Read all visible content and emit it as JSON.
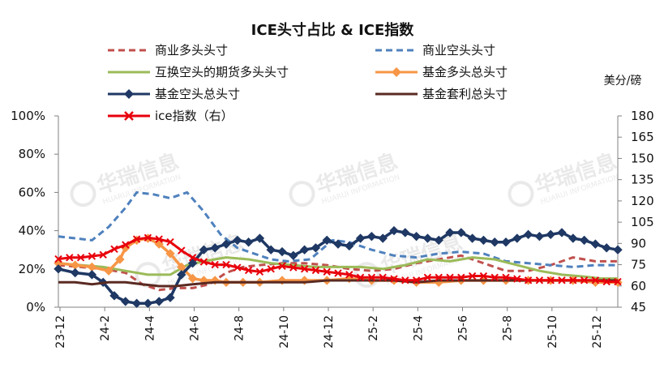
{
  "chart_data": {
    "type": "line",
    "title": "ICE头寸占比 & ICE指数",
    "right_axis_unit": "美分/磅",
    "x_tick_labels": [
      "23-12",
      "24-2",
      "24-4",
      "24-6",
      "24-8",
      "24-10",
      "24-12",
      "25-2",
      "25-4",
      "25-6",
      "25-8",
      "25-10",
      "25-12"
    ],
    "left_axis": {
      "ticks": [
        "0%",
        "20%",
        "40%",
        "60%",
        "80%",
        "100%"
      ],
      "range": [
        0,
        100
      ]
    },
    "right_axis": {
      "ticks": [
        "45",
        "60",
        "75",
        "90",
        "105",
        "120",
        "135",
        "150",
        "165",
        "180"
      ],
      "range": [
        45,
        180
      ]
    },
    "x_index_max": 100,
    "series": [
      {
        "name": "商业多头头寸",
        "axis": "left",
        "color": "#c0504d",
        "style": "dash",
        "marker": "none",
        "values": [
          [
            0,
            22
          ],
          [
            4,
            21
          ],
          [
            8,
            20
          ],
          [
            12,
            18
          ],
          [
            15,
            12
          ],
          [
            18,
            9
          ],
          [
            21,
            10
          ],
          [
            24,
            10
          ],
          [
            27,
            12
          ],
          [
            30,
            18
          ],
          [
            33,
            21
          ],
          [
            36,
            22
          ],
          [
            40,
            23
          ],
          [
            44,
            23
          ],
          [
            48,
            22
          ],
          [
            52,
            20
          ],
          [
            56,
            19
          ],
          [
            60,
            20
          ],
          [
            64,
            23
          ],
          [
            68,
            25
          ],
          [
            72,
            27
          ],
          [
            76,
            23
          ],
          [
            80,
            19
          ],
          [
            84,
            19
          ],
          [
            88,
            22
          ],
          [
            92,
            26
          ],
          [
            96,
            24
          ],
          [
            100,
            24
          ]
        ]
      },
      {
        "name": "商业空头头寸",
        "axis": "left",
        "color": "#4f81bd",
        "style": "dash",
        "marker": "none",
        "values": [
          [
            0,
            37
          ],
          [
            3,
            36
          ],
          [
            6,
            35
          ],
          [
            9,
            42
          ],
          [
            12,
            52
          ],
          [
            14,
            60
          ],
          [
            17,
            59
          ],
          [
            20,
            57
          ],
          [
            23,
            60
          ],
          [
            26,
            50
          ],
          [
            29,
            38
          ],
          [
            32,
            31
          ],
          [
            35,
            28
          ],
          [
            38,
            25
          ],
          [
            41,
            24
          ],
          [
            45,
            25
          ],
          [
            49,
            35
          ],
          [
            52,
            34
          ],
          [
            56,
            30
          ],
          [
            60,
            27
          ],
          [
            64,
            26
          ],
          [
            68,
            28
          ],
          [
            72,
            29
          ],
          [
            76,
            28
          ],
          [
            80,
            24
          ],
          [
            84,
            23
          ],
          [
            88,
            22
          ],
          [
            92,
            21
          ],
          [
            96,
            22
          ],
          [
            100,
            22
          ]
        ]
      },
      {
        "name": "互换空头的期货多头头寸",
        "axis": "left",
        "color": "#9bbb59",
        "style": "solid",
        "marker": "none",
        "values": [
          [
            0,
            23
          ],
          [
            4,
            22
          ],
          [
            8,
            21
          ],
          [
            12,
            19
          ],
          [
            16,
            17
          ],
          [
            20,
            17
          ],
          [
            23,
            22
          ],
          [
            26,
            24
          ],
          [
            30,
            26
          ],
          [
            34,
            25
          ],
          [
            38,
            23
          ],
          [
            42,
            22
          ],
          [
            46,
            21
          ],
          [
            50,
            21
          ],
          [
            54,
            21
          ],
          [
            58,
            20
          ],
          [
            62,
            22
          ],
          [
            66,
            25
          ],
          [
            70,
            24
          ],
          [
            74,
            26
          ],
          [
            78,
            25
          ],
          [
            82,
            22
          ],
          [
            86,
            19
          ],
          [
            90,
            17
          ],
          [
            94,
            16
          ],
          [
            97,
            15
          ],
          [
            100,
            15
          ]
        ]
      },
      {
        "name": "基金多头总头寸",
        "axis": "left",
        "color": "#f79646",
        "style": "solid",
        "marker": "diamond",
        "values": [
          [
            0,
            23
          ],
          [
            3,
            22
          ],
          [
            6,
            21
          ],
          [
            9,
            19
          ],
          [
            11,
            25
          ],
          [
            12,
            31
          ],
          [
            14,
            35
          ],
          [
            16,
            36
          ],
          [
            18,
            33
          ],
          [
            20,
            28
          ],
          [
            22,
            21
          ],
          [
            24,
            15
          ],
          [
            26,
            14
          ],
          [
            28,
            14
          ],
          [
            30,
            13
          ],
          [
            33,
            13
          ],
          [
            36,
            13
          ],
          [
            40,
            14
          ],
          [
            44,
            14
          ],
          [
            48,
            14
          ],
          [
            52,
            15
          ],
          [
            56,
            14
          ],
          [
            60,
            14
          ],
          [
            64,
            13
          ],
          [
            68,
            13
          ],
          [
            72,
            14
          ],
          [
            76,
            14
          ],
          [
            80,
            14
          ],
          [
            84,
            14
          ],
          [
            88,
            14
          ],
          [
            92,
            14
          ],
          [
            96,
            13
          ],
          [
            100,
            13
          ]
        ]
      },
      {
        "name": "基金空头总头寸",
        "axis": "left",
        "color": "#1f3864",
        "style": "solid",
        "marker": "diamond",
        "values": [
          [
            0,
            20
          ],
          [
            3,
            18
          ],
          [
            6,
            17
          ],
          [
            8,
            13
          ],
          [
            10,
            6
          ],
          [
            12,
            3
          ],
          [
            14,
            2
          ],
          [
            16,
            2
          ],
          [
            18,
            3
          ],
          [
            20,
            5
          ],
          [
            22,
            17
          ],
          [
            24,
            23
          ],
          [
            26,
            30
          ],
          [
            28,
            31
          ],
          [
            30,
            33
          ],
          [
            32,
            35
          ],
          [
            34,
            34
          ],
          [
            36,
            36
          ],
          [
            38,
            30
          ],
          [
            40,
            29
          ],
          [
            42,
            27
          ],
          [
            44,
            30
          ],
          [
            46,
            31
          ],
          [
            48,
            35
          ],
          [
            50,
            33
          ],
          [
            52,
            32
          ],
          [
            54,
            36
          ],
          [
            56,
            37
          ],
          [
            58,
            36
          ],
          [
            60,
            40
          ],
          [
            62,
            39
          ],
          [
            64,
            37
          ],
          [
            66,
            36
          ],
          [
            68,
            35
          ],
          [
            70,
            39
          ],
          [
            72,
            39
          ],
          [
            74,
            36
          ],
          [
            76,
            35
          ],
          [
            78,
            34
          ],
          [
            80,
            34
          ],
          [
            82,
            36
          ],
          [
            84,
            38
          ],
          [
            86,
            37
          ],
          [
            88,
            38
          ],
          [
            90,
            39
          ],
          [
            92,
            36
          ],
          [
            94,
            35
          ],
          [
            96,
            33
          ],
          [
            98,
            31
          ],
          [
            100,
            30
          ]
        ]
      },
      {
        "name": "基金套利总头寸",
        "axis": "left",
        "color": "#5a2a22",
        "style": "solid",
        "marker": "none",
        "values": [
          [
            0,
            13
          ],
          [
            3,
            13
          ],
          [
            6,
            12
          ],
          [
            9,
            13
          ],
          [
            12,
            13
          ],
          [
            15,
            12
          ],
          [
            18,
            11
          ],
          [
            21,
            11
          ],
          [
            24,
            12
          ],
          [
            28,
            13
          ],
          [
            32,
            13
          ],
          [
            36,
            13
          ],
          [
            40,
            13
          ],
          [
            44,
            13
          ],
          [
            48,
            14
          ],
          [
            52,
            14
          ],
          [
            56,
            14
          ],
          [
            60,
            14
          ],
          [
            64,
            13
          ],
          [
            68,
            14
          ],
          [
            72,
            14
          ],
          [
            76,
            14
          ],
          [
            80,
            14
          ],
          [
            84,
            14
          ],
          [
            88,
            14
          ],
          [
            92,
            14
          ],
          [
            96,
            14
          ],
          [
            100,
            14
          ]
        ]
      },
      {
        "name": "ice指数（右）",
        "axis": "right",
        "color": "#e8000b",
        "style": "solid",
        "marker": "x",
        "values": [
          [
            0,
            79
          ],
          [
            2,
            80
          ],
          [
            4,
            80
          ],
          [
            6,
            81
          ],
          [
            8,
            82
          ],
          [
            10,
            86
          ],
          [
            12,
            89
          ],
          [
            14,
            93
          ],
          [
            16,
            94
          ],
          [
            18,
            93
          ],
          [
            20,
            91
          ],
          [
            22,
            85
          ],
          [
            24,
            80
          ],
          [
            26,
            77
          ],
          [
            28,
            75
          ],
          [
            30,
            75
          ],
          [
            32,
            73
          ],
          [
            34,
            71
          ],
          [
            36,
            70
          ],
          [
            38,
            72
          ],
          [
            40,
            74
          ],
          [
            42,
            73
          ],
          [
            44,
            72
          ],
          [
            46,
            71
          ],
          [
            48,
            70
          ],
          [
            50,
            69
          ],
          [
            52,
            68
          ],
          [
            54,
            66
          ],
          [
            56,
            66
          ],
          [
            58,
            66
          ],
          [
            60,
            65
          ],
          [
            62,
            64
          ],
          [
            64,
            64
          ],
          [
            66,
            66
          ],
          [
            68,
            66
          ],
          [
            70,
            66
          ],
          [
            72,
            66
          ],
          [
            74,
            67
          ],
          [
            76,
            67
          ],
          [
            78,
            66
          ],
          [
            80,
            66
          ],
          [
            82,
            65
          ],
          [
            84,
            64
          ],
          [
            86,
            64
          ],
          [
            88,
            64
          ],
          [
            90,
            64
          ],
          [
            92,
            64
          ],
          [
            94,
            64
          ],
          [
            96,
            64
          ],
          [
            98,
            63
          ],
          [
            100,
            63
          ]
        ]
      }
    ]
  },
  "watermark": {
    "brand_text": "华瑞信息",
    "sub_text": "HUARUI INFORMATION"
  },
  "colors": {
    "axis": "#808080",
    "background": "#ffffff"
  }
}
